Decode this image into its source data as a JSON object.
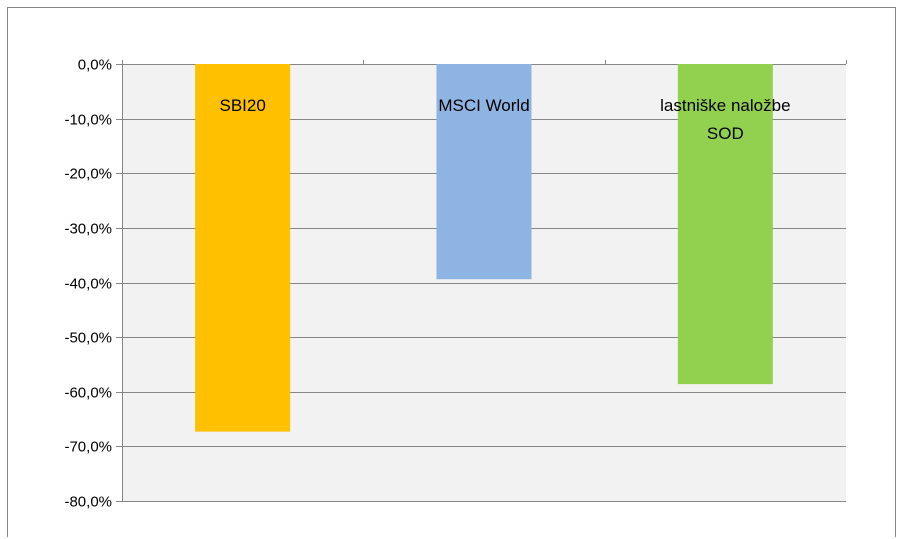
{
  "chart_data": {
    "type": "bar",
    "categories": [
      "SBI20",
      "MSCI World",
      "lastniške naložbe SOD"
    ],
    "category_label_lines": [
      [
        "SBI20"
      ],
      [
        "MSCI World"
      ],
      [
        "lastniške naložbe",
        "SOD"
      ]
    ],
    "values": [
      -67.3,
      -39.4,
      -58.6
    ],
    "colors": [
      "#FFC000",
      "#8EB4E3",
      "#92D050"
    ],
    "ylim": [
      -80,
      0
    ],
    "yticks": [
      0,
      -10,
      -20,
      -30,
      -40,
      -50,
      -60,
      -70,
      -80
    ],
    "ytick_labels": [
      "0,0%",
      "-10,0%",
      "-20,0%",
      "-30,0%",
      "-40,0%",
      "-50,0%",
      "-60,0%",
      "-70,0%",
      "-80,0%"
    ],
    "plot_background": "#F2F2F2",
    "grid": true,
    "legend": "none",
    "title": "",
    "xlabel": "",
    "ylabel": ""
  }
}
